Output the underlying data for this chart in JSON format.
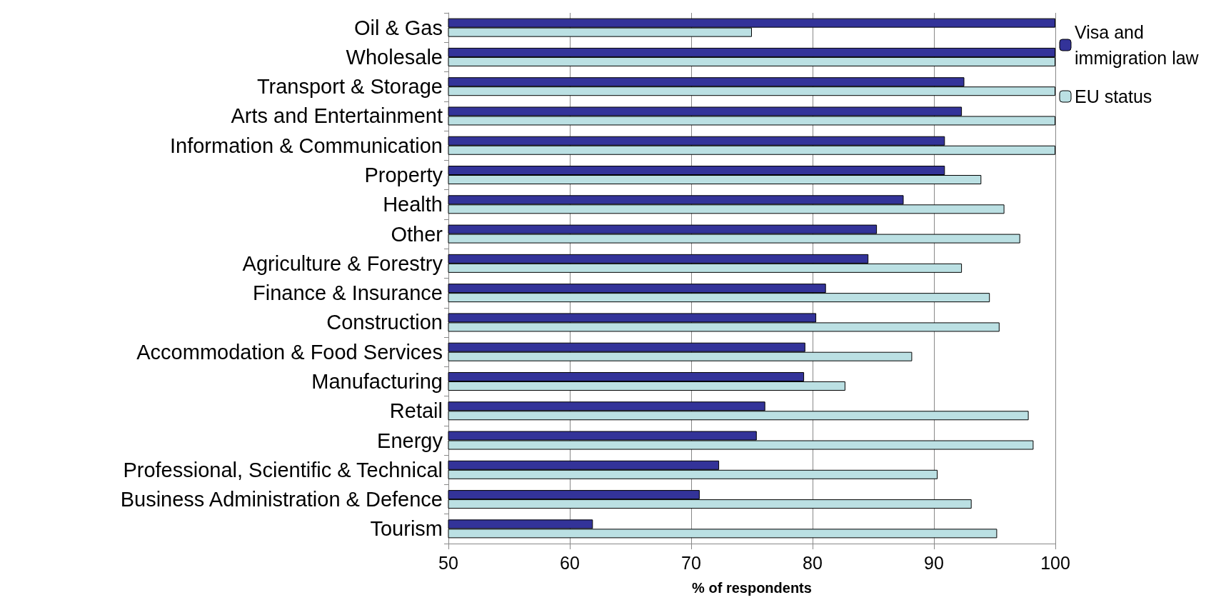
{
  "chart_data": {
    "type": "bar",
    "orientation": "horizontal",
    "xlabel": "% of respondents",
    "categories": [
      "Oil & Gas",
      "Wholesale",
      "Transport & Storage",
      "Arts and Entertainment",
      "Information & Communication",
      "Property",
      "Health",
      "Other",
      "Agriculture & Forestry",
      "Finance & Insurance",
      "Construction",
      "Accommodation & Food Services",
      "Manufacturing",
      "Retail",
      "Energy",
      "Professional, Scientific & Technical",
      "Business Administration & Defence",
      "Tourism"
    ],
    "series": [
      {
        "name": "Visa and immigration law",
        "color": "#333399",
        "values": [
          100,
          100,
          92.5,
          92.3,
          90.9,
          90.9,
          87.5,
          85.3,
          84.6,
          81.1,
          80.3,
          79.4,
          79.3,
          76.1,
          75.4,
          72.3,
          70.7,
          61.9
        ]
      },
      {
        "name": "EU status",
        "color": "#bbe0e3",
        "values": [
          75,
          100,
          100,
          100,
          100,
          93.9,
          95.8,
          97.1,
          92.3,
          94.6,
          95.4,
          88.2,
          82.7,
          97.8,
          98.2,
          90.3,
          93.1,
          95.2
        ]
      }
    ],
    "xlim": [
      50,
      100
    ],
    "xticks": [
      50,
      60,
      70,
      80,
      90,
      100
    ],
    "grid": "x",
    "legend": "top right"
  }
}
